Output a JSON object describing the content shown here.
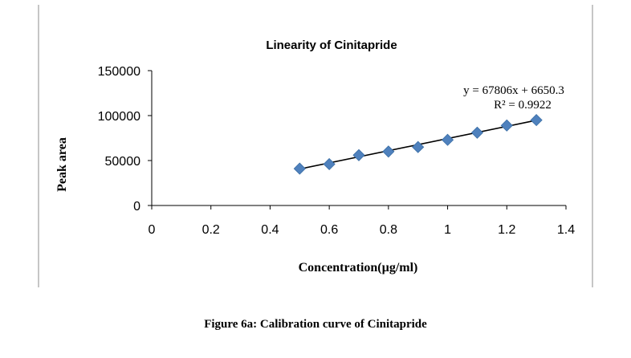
{
  "chart_data": {
    "type": "scatter",
    "title": "Linearity of Cinitapride",
    "xlabel": "Concentration(µg/ml)",
    "ylabel": "Peak area",
    "xlim": [
      0,
      1.4
    ],
    "ylim": [
      0,
      150000
    ],
    "x_ticks": [
      "0",
      "0.2",
      "0.4",
      "0.6",
      "0.8",
      "1",
      "1.2",
      "1.4"
    ],
    "y_ticks": [
      "0",
      "50000",
      "100000",
      "150000"
    ],
    "x_tick_values": [
      0,
      0.2,
      0.4,
      0.6,
      0.8,
      1.0,
      1.2,
      1.4
    ],
    "y_tick_values": [
      0,
      50000,
      100000,
      150000
    ],
    "grid": false,
    "series": [
      {
        "marker": "diamond",
        "color": "#4f81bd",
        "x": [
          0.5,
          0.6,
          0.7,
          0.8,
          0.9,
          1.0,
          1.1,
          1.2,
          1.3
        ],
        "y": [
          41000,
          46000,
          56000,
          60000,
          65000,
          73000,
          81000,
          89000,
          95000
        ]
      }
    ],
    "trendline": {
      "slope": 67806,
      "intercept": 6650.3,
      "x_range": [
        0.5,
        1.3
      ],
      "color": "#000000",
      "equation_text": "y = 67806x + 6650.3",
      "r2_text": "R² = 0.9922"
    }
  },
  "caption": "Figure 6a: Calibration curve of Cinitapride"
}
